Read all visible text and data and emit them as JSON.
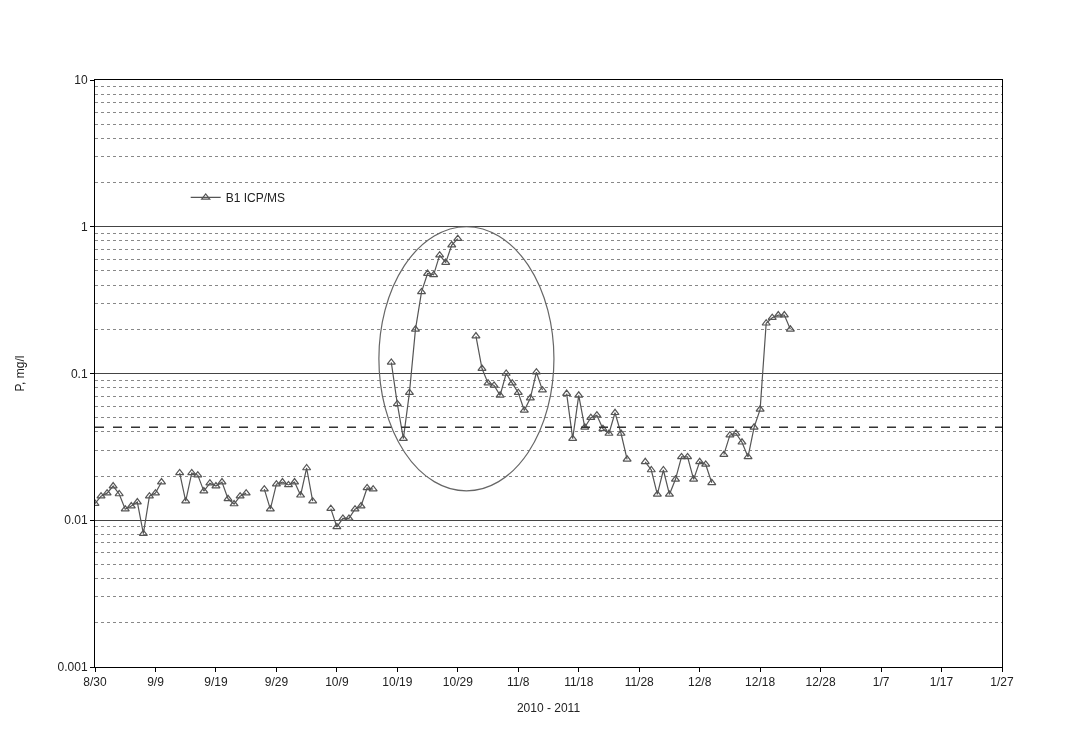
{
  "chart_data": {
    "type": "line",
    "xlabel": "2010 - 2011",
    "ylabel": "P, mg/l",
    "x": [
      "2010-08-30",
      "2010-08-31",
      "2010-09-01",
      "2010-09-02",
      "2010-09-03",
      "2010-09-04",
      "2010-09-05",
      "2010-09-06",
      "2010-09-07",
      "2010-09-08",
      "2010-09-09",
      "2010-09-10",
      "2010-09-11",
      "2010-09-13",
      "2010-09-14",
      "2010-09-15",
      "2010-09-16",
      "2010-09-17",
      "2010-09-18",
      "2010-09-19",
      "2010-09-20",
      "2010-09-21",
      "2010-09-22",
      "2010-09-23",
      "2010-09-24",
      "2010-09-25",
      "2010-09-27",
      "2010-09-28",
      "2010-09-29",
      "2010-09-30",
      "2010-10-01",
      "2010-10-02",
      "2010-10-03",
      "2010-10-04",
      "2010-10-05",
      "2010-10-06",
      "2010-10-08",
      "2010-10-09",
      "2010-10-10",
      "2010-10-11",
      "2010-10-12",
      "2010-10-13",
      "2010-10-14",
      "2010-10-15",
      "2010-10-16",
      "2010-10-18",
      "2010-10-19",
      "2010-10-20",
      "2010-10-21",
      "2010-10-22",
      "2010-10-23",
      "2010-10-24",
      "2010-10-25",
      "2010-10-26",
      "2010-10-27",
      "2010-10-28",
      "2010-10-29",
      "2010-10-30",
      "2010-11-01",
      "2010-11-02",
      "2010-11-03",
      "2010-11-04",
      "2010-11-05",
      "2010-11-06",
      "2010-11-07",
      "2010-11-08",
      "2010-11-09",
      "2010-11-10",
      "2010-11-11",
      "2010-11-12",
      "2010-11-13",
      "2010-11-16",
      "2010-11-17",
      "2010-11-18",
      "2010-11-19",
      "2010-11-20",
      "2010-11-21",
      "2010-11-22",
      "2010-11-23",
      "2010-11-24",
      "2010-11-25",
      "2010-11-26",
      "2010-11-27",
      "2010-11-29",
      "2010-11-30",
      "2010-12-01",
      "2010-12-02",
      "2010-12-03",
      "2010-12-04",
      "2010-12-05",
      "2010-12-06",
      "2010-12-07",
      "2010-12-08",
      "2010-12-09",
      "2010-12-10",
      "2010-12-11",
      "2010-12-12",
      "2010-12-13",
      "2010-12-14",
      "2010-12-15",
      "2010-12-16",
      "2010-12-17",
      "2010-12-18",
      "2010-12-19",
      "2010-12-20",
      "2010-12-21",
      "2010-12-22",
      "2010-12-23"
    ],
    "series": [
      {
        "name": "B1 ICP/MS",
        "color": "#555555",
        "values": [
          0.013,
          0.0146,
          0.0153,
          0.0171,
          0.0151,
          0.0119,
          0.0125,
          0.0133,
          0.0081,
          0.0146,
          0.0153,
          0.0182,
          null,
          0.021,
          0.0135,
          0.021,
          0.0203,
          0.0158,
          0.0179,
          0.0171,
          0.0182,
          0.014,
          0.0129,
          0.0146,
          0.0153,
          null,
          0.0163,
          0.0119,
          0.0176,
          0.0182,
          0.0174,
          0.0182,
          0.0148,
          0.0227,
          0.0135,
          null,
          0.012,
          0.009,
          0.0103,
          0.0103,
          0.0119,
          0.0125,
          0.0166,
          0.0163,
          null,
          0.119,
          0.062,
          0.036,
          0.074,
          0.2,
          0.36,
          0.48,
          0.47,
          0.64,
          0.57,
          0.75,
          0.83,
          null,
          0.18,
          0.108,
          0.086,
          0.083,
          0.071,
          0.1,
          0.086,
          0.074,
          0.056,
          0.068,
          0.102,
          0.077,
          null,
          0.073,
          0.036,
          0.071,
          0.043,
          0.05,
          0.052,
          0.042,
          0.039,
          0.054,
          0.039,
          0.026,
          null,
          0.025,
          0.022,
          0.015,
          0.022,
          0.015,
          0.019,
          0.027,
          0.027,
          0.019,
          0.025,
          0.024,
          0.018,
          null,
          0.028,
          0.038,
          0.039,
          0.034,
          0.027,
          0.043,
          0.057,
          0.22,
          0.24,
          0.25,
          0.25,
          0.2
        ]
      }
    ],
    "log": "y",
    "ylim": [
      0.001,
      10
    ],
    "yticks": [
      0.001,
      0.01,
      0.1,
      1,
      10
    ],
    "xlim": [
      "2010-08-30",
      "2011-01-27"
    ],
    "xticks": [
      {
        "value": "2010-08-30",
        "label": "8/30"
      },
      {
        "value": "2010-09-09",
        "label": "9/9"
      },
      {
        "value": "2010-09-19",
        "label": "9/19"
      },
      {
        "value": "2010-09-29",
        "label": "9/29"
      },
      {
        "value": "2010-10-09",
        "label": "10/9"
      },
      {
        "value": "2010-10-19",
        "label": "10/19"
      },
      {
        "value": "2010-10-29",
        "label": "10/29"
      },
      {
        "value": "2010-11-08",
        "label": "11/8"
      },
      {
        "value": "2010-11-18",
        "label": "11/18"
      },
      {
        "value": "2010-11-28",
        "label": "11/28"
      },
      {
        "value": "2010-12-08",
        "label": "12/8"
      },
      {
        "value": "2010-12-18",
        "label": "12/18"
      },
      {
        "value": "2010-12-28",
        "label": "12/28"
      },
      {
        "value": "2011-01-07",
        "label": "1/7"
      },
      {
        "value": "2011-01-17",
        "label": "1/17"
      },
      {
        "value": "2011-01-27",
        "label": "1/27"
      }
    ],
    "ref_lines": [
      {
        "axis": "y",
        "value": 0.043,
        "color": "#333333",
        "line_style": "dashed"
      }
    ],
    "grid": "y",
    "legend": "top left",
    "marker": "triangle",
    "line_style": "solid"
  }
}
